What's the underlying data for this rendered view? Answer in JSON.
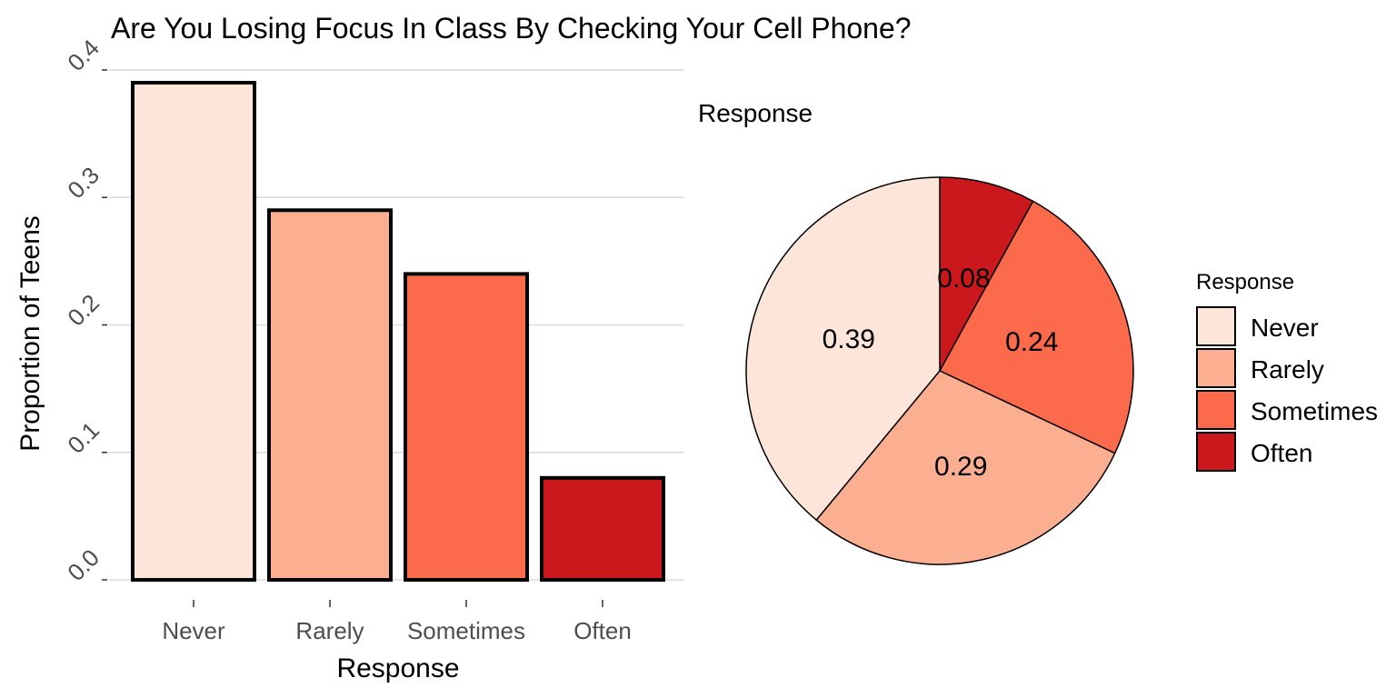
{
  "title": "Are You Losing Focus In Class By Checking Your Cell Phone?",
  "chart_data": [
    {
      "type": "bar",
      "categories": [
        "Never",
        "Rarely",
        "Sometimes",
        "Often"
      ],
      "values": [
        0.39,
        0.29,
        0.24,
        0.08
      ],
      "xlabel": "Response",
      "ylabel": "Proportion of Teens",
      "ylim": [
        0,
        0.4
      ],
      "yticks": [
        "0.0",
        "0.1",
        "0.2",
        "0.3",
        "0.4"
      ],
      "grid": true,
      "colors": [
        "#fee5d9",
        "#fcae91",
        "#fb6a4a",
        "#cb181d"
      ]
    },
    {
      "type": "pie",
      "title": "Response",
      "categories": [
        "Never",
        "Rarely",
        "Sometimes",
        "Often"
      ],
      "values": [
        0.39,
        0.29,
        0.24,
        0.08
      ],
      "labels": [
        "0.39",
        "0.29",
        "0.24",
        "0.08"
      ],
      "colors": [
        "#fee5d9",
        "#fcae91",
        "#fb6a4a",
        "#cb181d"
      ],
      "legend": {
        "title": "Response",
        "items": [
          "Never",
          "Rarely",
          "Sometimes",
          "Often"
        ],
        "position": "right"
      }
    }
  ]
}
